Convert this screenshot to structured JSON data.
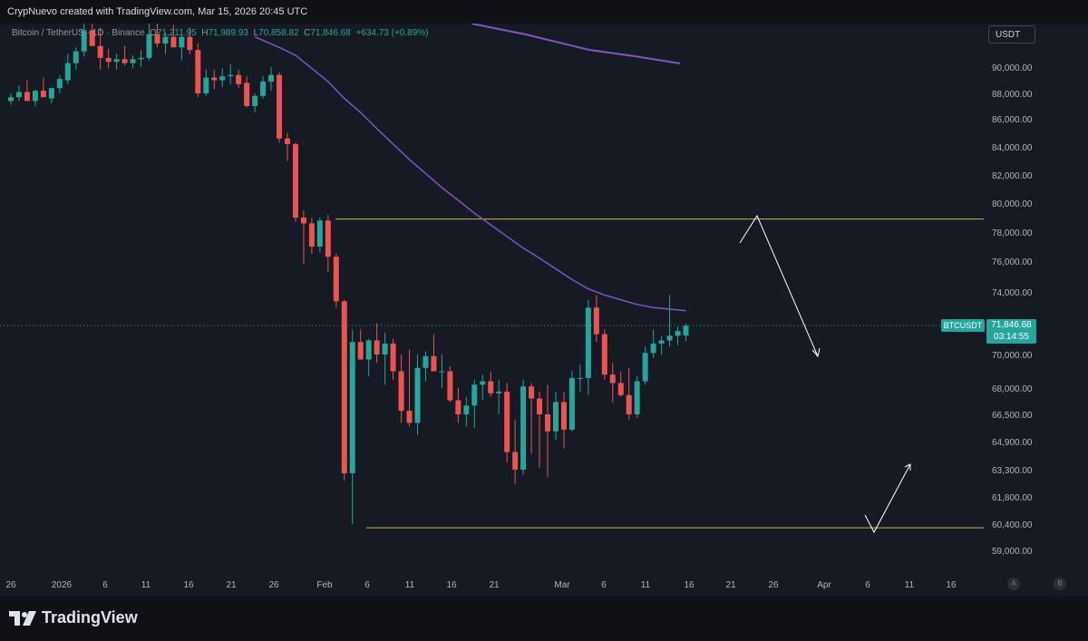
{
  "header": {
    "author_line": "CrypNuevo created with TradingView.com, Mar 15, 2026 20:45 UTC"
  },
  "legend": {
    "symbol_text": "Bitcoin / TetherUS · 1D · Binance",
    "open_label": "O",
    "open_value": "71,211.95",
    "high_label": "H",
    "high_value": "71,989.93",
    "low_label": "L",
    "low_value": "70,858.82",
    "close_label": "C",
    "close_value": "71,846.68",
    "change_value": "+634.73 (+0.89%)"
  },
  "currency_button": "USDT",
  "price_tag": {
    "symbol": "BTCUSDT",
    "price": "71,846.68",
    "countdown": "03:14:55"
  },
  "footer": {
    "brand": "TradingView",
    "btn_a": "A",
    "btn_b": "B"
  },
  "colors": {
    "up": "#26a69a",
    "down": "#ef5350",
    "ma": "#7e57c2",
    "level": "#c9b458",
    "arrow": "#ffffff"
  },
  "chart_data": {
    "type": "candlestick",
    "title": "Bitcoin / TetherUS · 1D · Binance",
    "ylim": [
      58000,
      92500
    ],
    "y_tick_labels": [
      "90,000.00",
      "88,000.00",
      "86,000.00",
      "84,000.00",
      "82,000.00",
      "80,000.00",
      "78,000.00",
      "76,000.00",
      "74,000.00",
      "70,000.00",
      "68,000.00",
      "66,500.00",
      "64,900.00",
      "63,300.00",
      "61,800.00",
      "60,400.00",
      "59,000.00"
    ],
    "x_tick_labels": [
      "26",
      "2026",
      "6",
      "11",
      "16",
      "21",
      "26",
      "Feb",
      "6",
      "11",
      "16",
      "21",
      "Mar",
      "6",
      "11",
      "16",
      "21",
      "26",
      "Apr",
      "6",
      "11",
      "16"
    ],
    "candles": [
      {
        "o": 87400,
        "h": 88000,
        "l": 87100,
        "c": 87700
      },
      {
        "o": 87700,
        "h": 88600,
        "l": 87400,
        "c": 88100
      },
      {
        "o": 88100,
        "h": 89000,
        "l": 87600,
        "c": 87400
      },
      {
        "o": 87400,
        "h": 88300,
        "l": 87000,
        "c": 88200
      },
      {
        "o": 88200,
        "h": 89200,
        "l": 87800,
        "c": 87700
      },
      {
        "o": 87600,
        "h": 88300,
        "l": 87200,
        "c": 88400
      },
      {
        "o": 88400,
        "h": 89400,
        "l": 88000,
        "c": 89100
      },
      {
        "o": 89000,
        "h": 91000,
        "l": 88700,
        "c": 90300
      },
      {
        "o": 90300,
        "h": 91500,
        "l": 89800,
        "c": 91200
      },
      {
        "o": 91200,
        "h": 93500,
        "l": 90800,
        "c": 92800
      },
      {
        "o": 92800,
        "h": 94500,
        "l": 91800,
        "c": 91600
      },
      {
        "o": 91600,
        "h": 93000,
        "l": 89800,
        "c": 90700
      },
      {
        "o": 90700,
        "h": 91400,
        "l": 89900,
        "c": 90400
      },
      {
        "o": 90400,
        "h": 91000,
        "l": 89800,
        "c": 90600
      },
      {
        "o": 90600,
        "h": 91600,
        "l": 90100,
        "c": 90300
      },
      {
        "o": 90300,
        "h": 90900,
        "l": 89900,
        "c": 90600
      },
      {
        "o": 90600,
        "h": 91300,
        "l": 90000,
        "c": 90700
      },
      {
        "o": 90700,
        "h": 93500,
        "l": 90500,
        "c": 92500
      },
      {
        "o": 92500,
        "h": 93400,
        "l": 91500,
        "c": 91800
      },
      {
        "o": 91800,
        "h": 92600,
        "l": 91000,
        "c": 92300
      },
      {
        "o": 92300,
        "h": 93200,
        "l": 91600,
        "c": 91500
      },
      {
        "o": 91500,
        "h": 92400,
        "l": 90500,
        "c": 92300
      },
      {
        "o": 92300,
        "h": 93000,
        "l": 91000,
        "c": 91300
      },
      {
        "o": 91300,
        "h": 91800,
        "l": 87700,
        "c": 88000
      },
      {
        "o": 88000,
        "h": 89800,
        "l": 87800,
        "c": 89200
      },
      {
        "o": 89200,
        "h": 89800,
        "l": 88300,
        "c": 89000
      },
      {
        "o": 89000,
        "h": 89900,
        "l": 88500,
        "c": 89300
      },
      {
        "o": 89300,
        "h": 90200,
        "l": 88700,
        "c": 89400
      },
      {
        "o": 89400,
        "h": 89800,
        "l": 88400,
        "c": 88700
      },
      {
        "o": 88800,
        "h": 89300,
        "l": 86900,
        "c": 87000
      },
      {
        "o": 87000,
        "h": 88000,
        "l": 86500,
        "c": 87800
      },
      {
        "o": 87800,
        "h": 89300,
        "l": 87600,
        "c": 88900
      },
      {
        "o": 88900,
        "h": 90000,
        "l": 88200,
        "c": 89400
      },
      {
        "o": 89400,
        "h": 89600,
        "l": 84300,
        "c": 84600
      },
      {
        "o": 84600,
        "h": 85000,
        "l": 83000,
        "c": 84200
      },
      {
        "o": 84200,
        "h": 84300,
        "l": 78700,
        "c": 79000
      },
      {
        "o": 79000,
        "h": 79500,
        "l": 75800,
        "c": 78600
      },
      {
        "o": 78600,
        "h": 79000,
        "l": 76500,
        "c": 77000
      },
      {
        "o": 77000,
        "h": 79000,
        "l": 76600,
        "c": 78800
      },
      {
        "o": 78800,
        "h": 79200,
        "l": 75300,
        "c": 76300
      },
      {
        "o": 76300,
        "h": 76500,
        "l": 73000,
        "c": 73400
      },
      {
        "o": 73400,
        "h": 73500,
        "l": 62700,
        "c": 63100
      },
      {
        "o": 63100,
        "h": 71600,
        "l": 60400,
        "c": 70800
      },
      {
        "o": 70800,
        "h": 71600,
        "l": 69700,
        "c": 69700
      },
      {
        "o": 69700,
        "h": 71000,
        "l": 68700,
        "c": 70900
      },
      {
        "o": 70900,
        "h": 72000,
        "l": 69500,
        "c": 70000
      },
      {
        "o": 70000,
        "h": 71400,
        "l": 68200,
        "c": 70700
      },
      {
        "o": 70700,
        "h": 71000,
        "l": 68500,
        "c": 69000
      },
      {
        "o": 69000,
        "h": 70000,
        "l": 66000,
        "c": 66700
      },
      {
        "o": 66700,
        "h": 70300,
        "l": 65800,
        "c": 66000
      },
      {
        "o": 66000,
        "h": 70000,
        "l": 65300,
        "c": 69200
      },
      {
        "o": 69200,
        "h": 70200,
        "l": 68400,
        "c": 69900
      },
      {
        "o": 69900,
        "h": 71300,
        "l": 69000,
        "c": 69000
      },
      {
        "o": 69000,
        "h": 70000,
        "l": 68000,
        "c": 69000
      },
      {
        "o": 69000,
        "h": 69300,
        "l": 67200,
        "c": 67300
      },
      {
        "o": 67300,
        "h": 68000,
        "l": 66000,
        "c": 66500
      },
      {
        "o": 66500,
        "h": 67500,
        "l": 65800,
        "c": 67000
      },
      {
        "o": 67000,
        "h": 68500,
        "l": 65700,
        "c": 68200
      },
      {
        "o": 68200,
        "h": 68800,
        "l": 67300,
        "c": 68400
      },
      {
        "o": 68400,
        "h": 69000,
        "l": 67500,
        "c": 67700
      },
      {
        "o": 67700,
        "h": 68500,
        "l": 66500,
        "c": 67800
      },
      {
        "o": 67800,
        "h": 68300,
        "l": 63700,
        "c": 64300
      },
      {
        "o": 64300,
        "h": 66200,
        "l": 62500,
        "c": 63300
      },
      {
        "o": 63300,
        "h": 68500,
        "l": 63000,
        "c": 68100
      },
      {
        "o": 68100,
        "h": 68300,
        "l": 64200,
        "c": 67400
      },
      {
        "o": 67400,
        "h": 67800,
        "l": 63400,
        "c": 66500
      },
      {
        "o": 66500,
        "h": 68200,
        "l": 62900,
        "c": 65500
      },
      {
        "o": 65500,
        "h": 67800,
        "l": 65000,
        "c": 67200
      },
      {
        "o": 67200,
        "h": 67800,
        "l": 64500,
        "c": 65600
      },
      {
        "o": 65600,
        "h": 69000,
        "l": 65500,
        "c": 68600
      },
      {
        "o": 68600,
        "h": 69400,
        "l": 67800,
        "c": 68600
      },
      {
        "o": 68600,
        "h": 73500,
        "l": 67600,
        "c": 73000
      },
      {
        "o": 73000,
        "h": 73800,
        "l": 70800,
        "c": 71300
      },
      {
        "o": 71300,
        "h": 71600,
        "l": 68500,
        "c": 68800
      },
      {
        "o": 68800,
        "h": 69500,
        "l": 67200,
        "c": 68300
      },
      {
        "o": 68300,
        "h": 69000,
        "l": 67500,
        "c": 67600
      },
      {
        "o": 67600,
        "h": 69200,
        "l": 66200,
        "c": 66500
      },
      {
        "o": 66500,
        "h": 68700,
        "l": 66300,
        "c": 68400
      },
      {
        "o": 68400,
        "h": 70500,
        "l": 68200,
        "c": 70100
      },
      {
        "o": 70100,
        "h": 71600,
        "l": 69800,
        "c": 70700
      },
      {
        "o": 70700,
        "h": 71200,
        "l": 70000,
        "c": 70900
      },
      {
        "o": 70900,
        "h": 73800,
        "l": 70500,
        "c": 71200
      },
      {
        "o": 71200,
        "h": 71800,
        "l": 70600,
        "c": 71500
      },
      {
        "o": 71211.95,
        "h": 71989.93,
        "l": 70858.82,
        "c": 71846.68
      }
    ],
    "moving_average": [
      {
        "i": 52,
        "v": 93800
      },
      {
        "i": 60,
        "v": 93200
      },
      {
        "i": 70,
        "v": 92600
      },
      {
        "i": 80,
        "v": 92000
      },
      {
        "i": 87,
        "v": 91300
      },
      {
        "i": 0,
        "v": null
      }
    ],
    "ma_path_data": [
      [
        30,
        92300
      ],
      [
        33,
        91500
      ],
      [
        35,
        90900
      ],
      [
        37,
        89900
      ],
      [
        39,
        88900
      ],
      [
        41,
        87600
      ],
      [
        43,
        86500
      ],
      [
        45,
        85300
      ],
      [
        47,
        84200
      ],
      [
        49,
        83100
      ],
      [
        51,
        82100
      ],
      [
        53,
        81100
      ],
      [
        55,
        80200
      ],
      [
        57,
        79300
      ],
      [
        59,
        78500
      ],
      [
        61,
        77700
      ],
      [
        63,
        76900
      ],
      [
        65,
        76200
      ],
      [
        67,
        75500
      ],
      [
        69,
        74800
      ],
      [
        71,
        74200
      ],
      [
        73,
        73800
      ],
      [
        75,
        73500
      ],
      [
        77,
        73200
      ],
      [
        79,
        73000
      ],
      [
        81,
        72900
      ],
      [
        83,
        72800
      ]
    ],
    "ma_upper_path": [
      [
        63,
        95800
      ],
      [
        67,
        95000
      ],
      [
        71,
        94500
      ],
      [
        75,
        93900
      ],
      [
        79,
        93400
      ],
      [
        83,
        92800
      ],
      [
        87,
        92300
      ],
      [
        89,
        92000
      ]
    ],
    "levels": [
      {
        "name": "resistance",
        "value": 78900
      },
      {
        "name": "support",
        "value": 60200
      }
    ]
  }
}
